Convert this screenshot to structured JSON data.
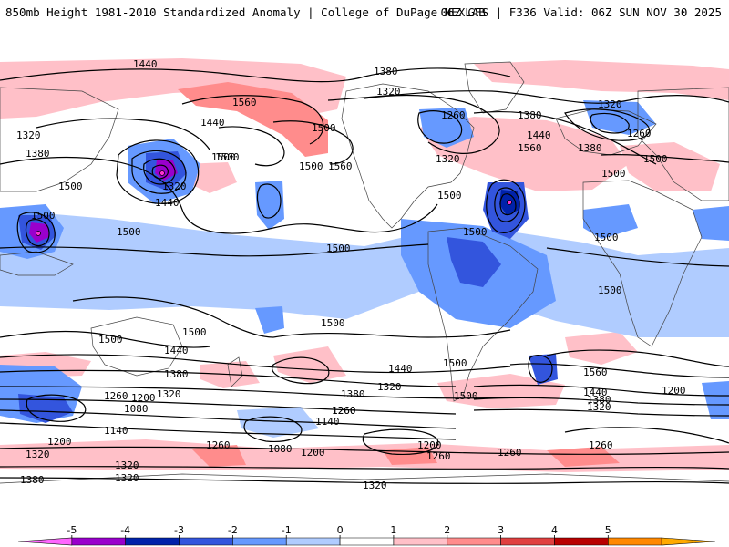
{
  "header": {
    "title": "850mb Height 1981-2010 Standardized Anomaly | College of DuPage NEXLAB",
    "run_info": "06Z GFS | F336 Valid: 06Z SUN NOV 30 2025"
  },
  "contour_labels": {
    "l1440_top": "1440",
    "l1380_top": "1380",
    "l1320_greenland": "1320",
    "l1260_hudson": "1260",
    "l1380_atl": "1380",
    "l1560_pac": "1560",
    "l1440_pac": "1440",
    "l1500_pac": "1500",
    "l1560_ak": "1560",
    "l1500_ak": "1500",
    "l1500_nepac": "1500",
    "l1560_nepac": "1560",
    "l1320_us": "1320",
    "l1500_us": "1500",
    "l1560_atl": "1560",
    "l1440_atl": "1440",
    "l1500_atl": "1500",
    "l1320_eur": "1320",
    "l1260_eur": "1260",
    "l1380_eur": "1380",
    "l1500_eur": "1500",
    "l1500_sib": "1500",
    "l1320_wpac": "1320",
    "l1440_wpac": "1440",
    "l1380_far": "1380",
    "l1320_far": "1320",
    "l1500_asia": "1500",
    "l1500_ind": "1500",
    "l1500_indo": "1500",
    "l1500_cpac": "1500",
    "l1500_africa": "1500",
    "l1500_sa": "1500",
    "l1500_spac": "1500",
    "l1500_aus": "1500",
    "l1500_swpac": "1500",
    "l1500_sio": "1500",
    "l1440_sh": "1440",
    "l1380_sh": "1380",
    "l1260_sh": "1260",
    "l1200_sh": "1200",
    "l1080_sh": "1080",
    "l1140_sh": "1140",
    "l1200_sh2": "1200",
    "l1320_sh": "1320",
    "l1380_so": "1380",
    "l1320_so": "1320",
    "l1260_so": "1260",
    "l1140_so": "1140",
    "l1080_so": "1080",
    "l1200_so": "1200",
    "l1260_so2": "1260",
    "l1320_so2": "1320",
    "l1500_sa2": "1500",
    "l1440_satl": "1440",
    "l1320_satl": "1320",
    "l1560_satl": "1560",
    "l1500_satl": "1500",
    "l1440_satl2": "1440",
    "l1380_satl": "1380",
    "l1320_satl2": "1320",
    "l1200_ant": "1200",
    "l1260_ant": "1260",
    "l1200_ant2": "1200",
    "l1260_ant2": "1260",
    "l1320_bot": "1320",
    "l1380_bot": "1380",
    "l1320_bot2": "1320",
    "l1260_bot": "1260",
    "l1320_bot3": "1320"
  },
  "colorbar": {
    "labels": [
      "-5",
      "-4",
      "-3",
      "-2",
      "-1",
      "0",
      "1",
      "2",
      "3",
      "4",
      "5"
    ],
    "colors": [
      "#ff66ff",
      "#9900cc",
      "#0022aa",
      "#3355dd",
      "#6699ff",
      "#b0ccff",
      "#ffffff",
      "#ffc0c8",
      "#ff8c8c",
      "#e04040",
      "#b80000",
      "#ff8800",
      "#ffaa00"
    ]
  }
}
